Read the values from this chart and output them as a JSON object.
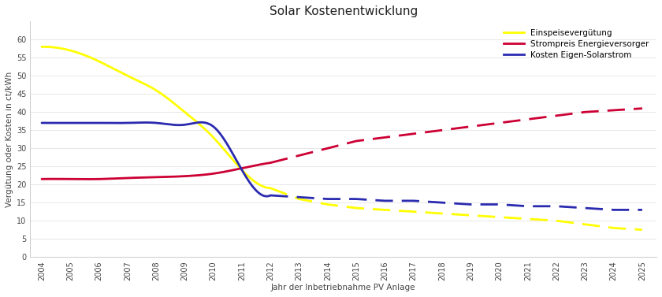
{
  "title": "Solar Kostenentwicklung",
  "xlabel": "Jahr der Inbetriebnahme PV Anlage",
  "ylabel": "Vergütung oder Kosten in ct/kWh",
  "yellow_solid_years": [
    2004,
    2005,
    2006,
    2007,
    2008,
    2009,
    2010,
    2011,
    2012
  ],
  "yellow_solid_vals": [
    58,
    57,
    54,
    50,
    46,
    40,
    33,
    24,
    19
  ],
  "yellow_dashed_years": [
    2012,
    2013,
    2014,
    2015,
    2016,
    2017,
    2018,
    2019,
    2020,
    2021,
    2022,
    2023,
    2024,
    2025
  ],
  "yellow_dashed_vals": [
    19,
    16,
    14.5,
    13.5,
    13,
    12.5,
    12,
    11.5,
    11,
    10.5,
    10,
    9,
    8,
    7.5
  ],
  "red_solid_years": [
    2004,
    2005,
    2006,
    2007,
    2008,
    2009,
    2010,
    2011,
    2012
  ],
  "red_solid_vals": [
    21.5,
    21.5,
    21.5,
    21.8,
    22,
    22.3,
    23,
    24.5,
    26
  ],
  "red_dashed_years": [
    2012,
    2013,
    2014,
    2015,
    2016,
    2017,
    2018,
    2019,
    2020,
    2021,
    2022,
    2023,
    2024,
    2025
  ],
  "red_dashed_vals": [
    26,
    28,
    30,
    32,
    33,
    34,
    35,
    36,
    37,
    38,
    39,
    40,
    40.5,
    41
  ],
  "blue_solid_years": [
    2004,
    2005,
    2006,
    2007,
    2008,
    2009,
    2010,
    2011,
    2012
  ],
  "blue_solid_vals": [
    37,
    37,
    37,
    37,
    37,
    36.5,
    36,
    24,
    17
  ],
  "blue_dashed_years": [
    2012,
    2013,
    2014,
    2015,
    2016,
    2017,
    2018,
    2019,
    2020,
    2021,
    2022,
    2023,
    2024,
    2025
  ],
  "blue_dashed_vals": [
    17,
    16.5,
    16,
    16,
    15.5,
    15.5,
    15,
    14.5,
    14.5,
    14,
    14,
    13.5,
    13,
    13
  ],
  "ylim": [
    0,
    65
  ],
  "yticks": [
    0,
    5,
    10,
    15,
    20,
    25,
    30,
    35,
    40,
    45,
    50,
    55,
    60
  ],
  "yellow_color": "#FFFF00",
  "red_color": "#CC0033",
  "blue_color": "#2B2BB0",
  "legend_labels": [
    "Einspeisevergütung",
    "Strompreis Energieversorger",
    "Kosten Eigen-Solarstrom"
  ],
  "title_fontsize": 11,
  "label_fontsize": 7.5,
  "tick_fontsize": 7,
  "linewidth": 2.0,
  "dash_pattern": [
    8,
    4
  ]
}
